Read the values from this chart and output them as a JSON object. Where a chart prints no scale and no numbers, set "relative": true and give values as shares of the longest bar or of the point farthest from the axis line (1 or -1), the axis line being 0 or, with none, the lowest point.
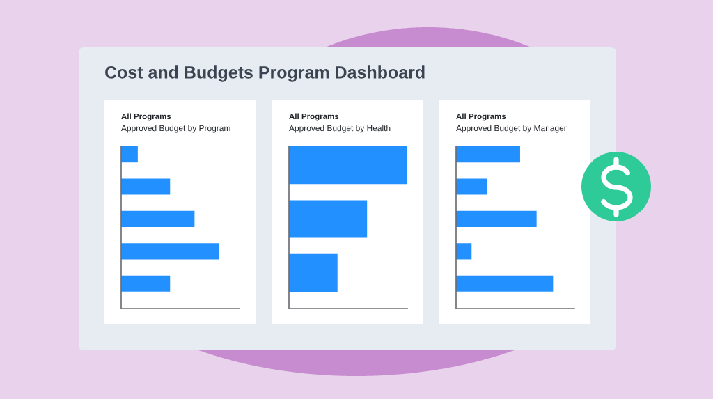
{
  "chart_data": [
    {
      "type": "other",
      "title": "Cost and Budgets Program Dashboard"
    },
    {
      "type": "bar",
      "title": "All Programs",
      "subtitle": "Approved Budget by Program",
      "orientation": "horizontal",
      "relative": true,
      "categories": [
        null,
        null,
        null,
        null,
        null
      ],
      "values": [
        0.17,
        0.5,
        0.75,
        1,
        0.5
      ],
      "color": "#2291ff"
    },
    {
      "type": "bar",
      "title": "All Programs",
      "subtitle": "Approved Budget by Health",
      "orientation": "horizontal",
      "relative": true,
      "categories": [
        null,
        null,
        null
      ],
      "values": [
        1,
        0.66,
        0.41
      ],
      "color": "#2291ff"
    },
    {
      "type": "bar",
      "title": "All Programs",
      "subtitle": "Approved Budget by Manager",
      "orientation": "horizontal",
      "relative": true,
      "categories": [
        null,
        null,
        null,
        null,
        null
      ],
      "values": [
        0.66,
        0.32,
        0.83,
        0.16,
        1
      ],
      "color": "#2291ff"
    }
  ]
}
